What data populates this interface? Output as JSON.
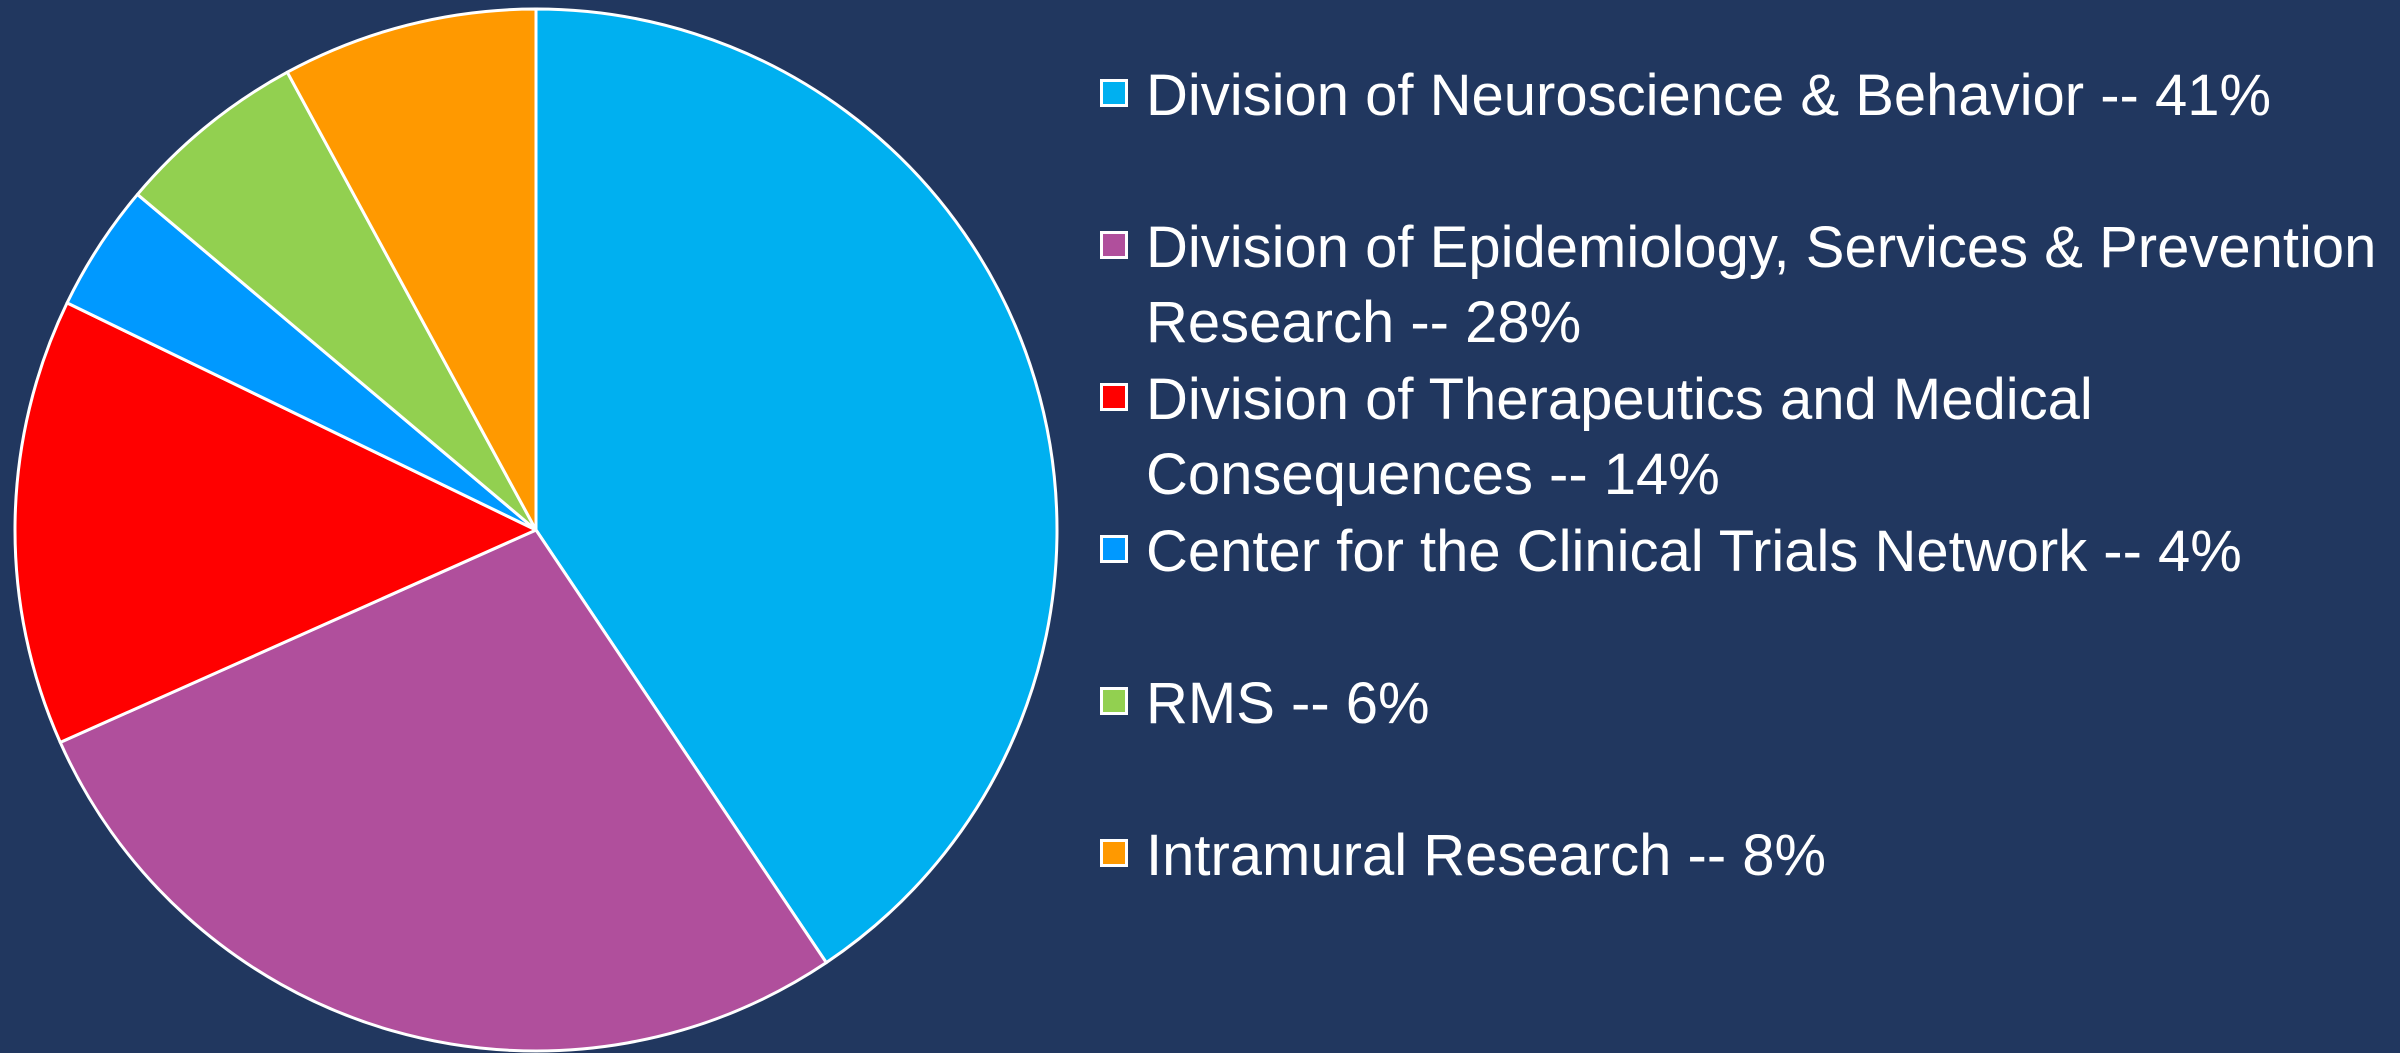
{
  "chart_data": {
    "type": "pie",
    "categories": [
      "Division of Neuroscience & Behavior -- 41%",
      "Division of Epidemiology, Services & Prevention Research -- 28%",
      "Division of Therapeutics and Medical Consequences -- 14%",
      "Center for the Clinical Trials Network -- 4%",
      "RMS -- 6%",
      "Intramural Research -- 8%"
    ],
    "values": [
      41,
      28,
      14,
      4,
      6,
      8
    ],
    "colors": [
      "#00b0f0",
      "#b04f9c",
      "#ff0000",
      "#0099ff",
      "#92d050",
      "#ff9900"
    ],
    "legend": "right"
  }
}
